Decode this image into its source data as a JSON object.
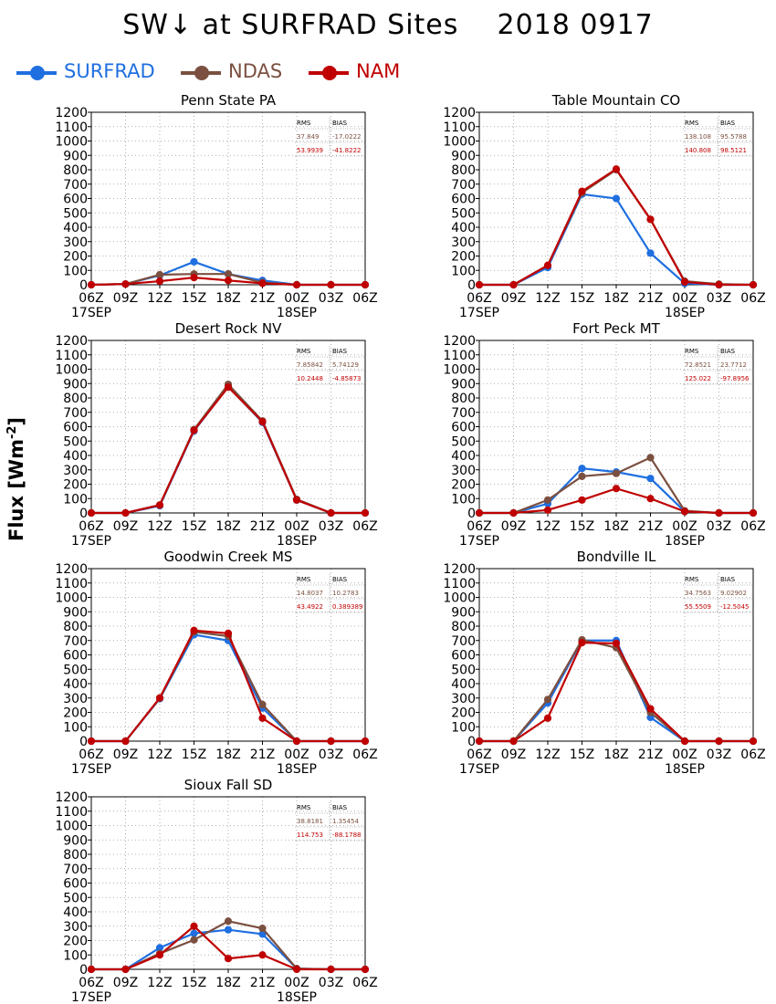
{
  "page": {
    "title": "SW↓ at SURFRAD Sites    2018 0917",
    "ylabel_main": "Flux [Wm",
    "ylabel_sup": "-2",
    "ylabel_close": "]"
  },
  "legend": [
    {
      "name": "SURFRAD",
      "color": "#1f6fe0"
    },
    {
      "name": "NDAS",
      "color": "#7b5040"
    },
    {
      "name": "NAM",
      "color": "#c00000"
    }
  ],
  "chart_data": [
    {
      "type": "line",
      "title": "Penn State PA",
      "x": [
        "06Z",
        "09Z",
        "12Z",
        "15Z",
        "18Z",
        "21Z",
        "00Z",
        "03Z",
        "06Z"
      ],
      "date_labels": {
        "0": "17SEP",
        "6": "18SEP"
      },
      "yticks": [
        0,
        100,
        200,
        300,
        400,
        500,
        600,
        700,
        800,
        900,
        1000,
        1100,
        1200
      ],
      "ylim": [
        0,
        1200
      ],
      "grid": true,
      "stats": {
        "header": [
          "RMS",
          "BIAS"
        ],
        "rows": [
          {
            "color": "#7b5040",
            "values": [
              "37.849",
              "-17.0222"
            ]
          },
          {
            "color": "#c00000",
            "values": [
              "53.9939",
              "-41.8222"
            ]
          }
        ]
      },
      "series": [
        {
          "name": "SURFRAD",
          "color": "#1f6fe0",
          "values": [
            0,
            5,
            65,
            160,
            75,
            30,
            0,
            0,
            0
          ]
        },
        {
          "name": "NDAS",
          "color": "#7b5040",
          "values": [
            0,
            5,
            70,
            75,
            75,
            15,
            0,
            0,
            0
          ]
        },
        {
          "name": "NAM",
          "color": "#c00000",
          "values": [
            0,
            5,
            25,
            50,
            30,
            10,
            0,
            0,
            0
          ]
        }
      ]
    },
    {
      "type": "line",
      "title": "Table Mountain CO",
      "x": [
        "06Z",
        "09Z",
        "12Z",
        "15Z",
        "18Z",
        "21Z",
        "00Z",
        "03Z",
        "06Z"
      ],
      "date_labels": {
        "0": "17SEP",
        "6": "18SEP"
      },
      "yticks": [
        0,
        100,
        200,
        300,
        400,
        500,
        600,
        700,
        800,
        900,
        1000,
        1100,
        1200
      ],
      "ylim": [
        0,
        1200
      ],
      "grid": true,
      "stats": {
        "header": [
          "RMS",
          "BIAS"
        ],
        "rows": [
          {
            "color": "#7b5040",
            "values": [
              "138.108",
              "95.5788"
            ]
          },
          {
            "color": "#c00000",
            "values": [
              "140.808",
              "98.5121"
            ]
          }
        ]
      },
      "series": [
        {
          "name": "SURFRAD",
          "color": "#1f6fe0",
          "values": [
            0,
            0,
            120,
            630,
            600,
            220,
            10,
            0,
            0
          ]
        },
        {
          "name": "NDAS",
          "color": "#7b5040",
          "values": [
            0,
            0,
            135,
            640,
            800,
            455,
            25,
            5,
            0
          ]
        },
        {
          "name": "NAM",
          "color": "#c00000",
          "values": [
            0,
            0,
            135,
            650,
            805,
            455,
            20,
            0,
            0
          ]
        }
      ]
    },
    {
      "type": "line",
      "title": "Desert Rock NV",
      "x": [
        "06Z",
        "09Z",
        "12Z",
        "15Z",
        "18Z",
        "21Z",
        "00Z",
        "03Z",
        "06Z"
      ],
      "date_labels": {
        "0": "17SEP",
        "6": "18SEP"
      },
      "yticks": [
        0,
        100,
        200,
        300,
        400,
        500,
        600,
        700,
        800,
        900,
        1000,
        1100,
        1200
      ],
      "ylim": [
        0,
        1200
      ],
      "grid": true,
      "stats": {
        "header": [
          "RMS",
          "BIAS"
        ],
        "rows": [
          {
            "color": "#7b5040",
            "values": [
              "7.85842",
              "5.74129"
            ]
          },
          {
            "color": "#c00000",
            "values": [
              "10.2448",
              "-4.85873"
            ]
          }
        ]
      },
      "series": [
        {
          "name": "SURFRAD",
          "color": "#1f6fe0",
          "values": [
            0,
            0,
            50,
            570,
            880,
            630,
            90,
            0,
            0
          ]
        },
        {
          "name": "NDAS",
          "color": "#7b5040",
          "values": [
            0,
            0,
            55,
            580,
            895,
            640,
            95,
            0,
            0
          ]
        },
        {
          "name": "NAM",
          "color": "#c00000",
          "values": [
            0,
            0,
            55,
            575,
            875,
            635,
            90,
            0,
            0
          ]
        }
      ]
    },
    {
      "type": "line",
      "title": "Fort Peck MT",
      "x": [
        "06Z",
        "09Z",
        "12Z",
        "15Z",
        "18Z",
        "21Z",
        "00Z",
        "03Z",
        "06Z"
      ],
      "date_labels": {
        "0": "17SEP",
        "6": "18SEP"
      },
      "yticks": [
        0,
        100,
        200,
        300,
        400,
        500,
        600,
        700,
        800,
        900,
        1000,
        1100,
        1200
      ],
      "ylim": [
        0,
        1200
      ],
      "grid": true,
      "stats": {
        "header": [
          "RMS",
          "BIAS"
        ],
        "rows": [
          {
            "color": "#7b5040",
            "values": [
              "72.8521",
              "23.7712"
            ]
          },
          {
            "color": "#c00000",
            "values": [
              "125.022",
              "-97.8956"
            ]
          }
        ]
      },
      "series": [
        {
          "name": "SURFRAD",
          "color": "#1f6fe0",
          "values": [
            0,
            0,
            65,
            310,
            285,
            240,
            10,
            0,
            0
          ]
        },
        {
          "name": "NDAS",
          "color": "#7b5040",
          "values": [
            0,
            0,
            90,
            255,
            275,
            385,
            15,
            0,
            0
          ]
        },
        {
          "name": "NAM",
          "color": "#c00000",
          "values": [
            0,
            0,
            20,
            90,
            170,
            100,
            10,
            0,
            0
          ]
        }
      ]
    },
    {
      "type": "line",
      "title": "Goodwin Creek MS",
      "x": [
        "06Z",
        "09Z",
        "12Z",
        "15Z",
        "18Z",
        "21Z",
        "00Z",
        "03Z",
        "06Z"
      ],
      "date_labels": {
        "0": "17SEP",
        "6": "18SEP"
      },
      "yticks": [
        0,
        100,
        200,
        300,
        400,
        500,
        600,
        700,
        800,
        900,
        1000,
        1100,
        1200
      ],
      "ylim": [
        0,
        1200
      ],
      "grid": true,
      "stats": {
        "header": [
          "RMS",
          "BIAS"
        ],
        "rows": [
          {
            "color": "#7b5040",
            "values": [
              "14.8037",
              "10.2783"
            ]
          },
          {
            "color": "#c00000",
            "values": [
              "43.4922",
              "0.389389"
            ]
          }
        ]
      },
      "series": [
        {
          "name": "SURFRAD",
          "color": "#1f6fe0",
          "values": [
            0,
            0,
            295,
            740,
            700,
            230,
            0,
            0,
            0
          ]
        },
        {
          "name": "NDAS",
          "color": "#7b5040",
          "values": [
            0,
            0,
            300,
            760,
            730,
            255,
            0,
            0,
            0
          ]
        },
        {
          "name": "NAM",
          "color": "#c00000",
          "values": [
            0,
            0,
            300,
            770,
            750,
            160,
            0,
            0,
            0
          ]
        }
      ]
    },
    {
      "type": "line",
      "title": "Bondville IL",
      "x": [
        "06Z",
        "09Z",
        "12Z",
        "15Z",
        "18Z",
        "21Z",
        "00Z",
        "03Z",
        "06Z"
      ],
      "date_labels": {
        "0": "17SEP",
        "6": "18SEP"
      },
      "yticks": [
        0,
        100,
        200,
        300,
        400,
        500,
        600,
        700,
        800,
        900,
        1000,
        1100,
        1200
      ],
      "ylim": [
        0,
        1200
      ],
      "grid": true,
      "stats": {
        "header": [
          "RMS",
          "BIAS"
        ],
        "rows": [
          {
            "color": "#7b5040",
            "values": [
              "34.7563",
              "9.02902"
            ]
          },
          {
            "color": "#c00000",
            "values": [
              "55.5509",
              "-12.5045"
            ]
          }
        ]
      },
      "series": [
        {
          "name": "SURFRAD",
          "color": "#1f6fe0",
          "values": [
            0,
            0,
            265,
            700,
            700,
            165,
            0,
            0,
            0
          ]
        },
        {
          "name": "NDAS",
          "color": "#7b5040",
          "values": [
            0,
            0,
            290,
            705,
            650,
            200,
            0,
            0,
            0
          ]
        },
        {
          "name": "NAM",
          "color": "#c00000",
          "values": [
            0,
            0,
            160,
            685,
            680,
            225,
            0,
            0,
            0
          ]
        }
      ]
    },
    {
      "type": "line",
      "title": "Sioux Fall SD",
      "x": [
        "06Z",
        "09Z",
        "12Z",
        "15Z",
        "18Z",
        "21Z",
        "00Z",
        "03Z",
        "06Z"
      ],
      "date_labels": {
        "0": "17SEP",
        "6": "18SEP"
      },
      "yticks": [
        0,
        100,
        200,
        300,
        400,
        500,
        600,
        700,
        800,
        900,
        1000,
        1100,
        1200
      ],
      "ylim": [
        0,
        1200
      ],
      "grid": true,
      "stats": {
        "header": [
          "RMS",
          "BIAS"
        ],
        "rows": [
          {
            "color": "#7b5040",
            "values": [
              "38.8181",
              "1.35454"
            ]
          },
          {
            "color": "#c00000",
            "values": [
              "114.753",
              "-88.1788"
            ]
          }
        ]
      },
      "series": [
        {
          "name": "SURFRAD",
          "color": "#1f6fe0",
          "values": [
            0,
            0,
            150,
            250,
            275,
            245,
            5,
            0,
            0
          ]
        },
        {
          "name": "NDAS",
          "color": "#7b5040",
          "values": [
            0,
            0,
            110,
            205,
            335,
            285,
            5,
            0,
            0
          ]
        },
        {
          "name": "NAM",
          "color": "#c00000",
          "values": [
            0,
            0,
            100,
            300,
            75,
            100,
            0,
            0,
            0
          ]
        }
      ]
    }
  ]
}
